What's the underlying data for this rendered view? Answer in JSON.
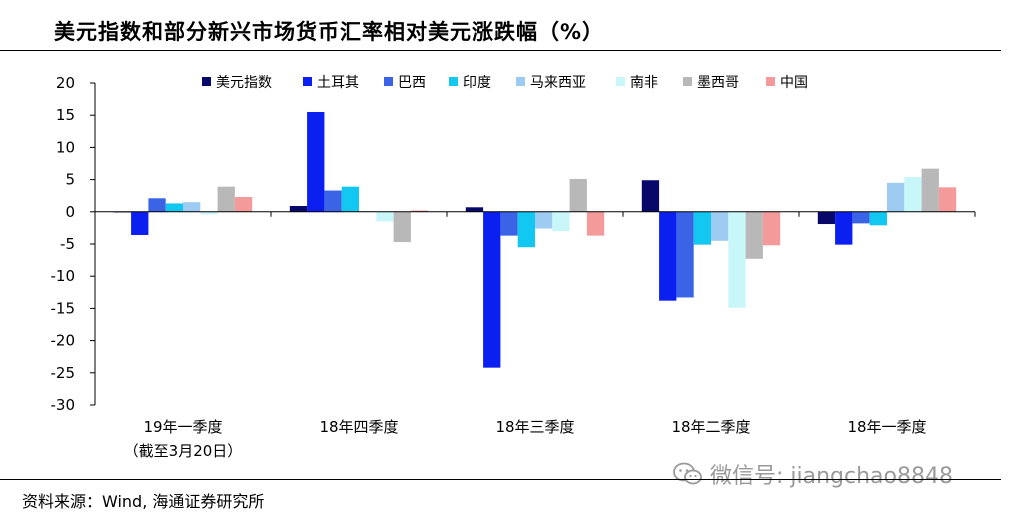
{
  "header": {
    "title": "美元指数和部分新兴市场货币汇率相对美元涨跌幅（%）"
  },
  "footer": {
    "source": "资料来源：Wind, 海通证券研究所",
    "watermark": "微信号: jiangchao8848"
  },
  "chart_data": {
    "type": "bar",
    "title": "美元指数和部分新兴市场货币汇率相对美元涨跌幅（%）",
    "categories": [
      "19年一季度",
      "18年四季度",
      "18年三季度",
      "18年二季度",
      "18年一季度"
    ],
    "category_sublabels": [
      "（截至3月20日）",
      "",
      "",
      "",
      ""
    ],
    "ylim": [
      -30,
      20
    ],
    "yticks": [
      20,
      15,
      10,
      5,
      0,
      -5,
      -10,
      -15,
      -20,
      -25,
      -30
    ],
    "legend_position": "top",
    "grid": false,
    "series": [
      {
        "name": "美元指数",
        "color": "#08086b",
        "values": [
          -0.1,
          0.9,
          0.7,
          4.9,
          -1.9
        ]
      },
      {
        "name": "土耳其",
        "color": "#0b1ff0",
        "values": [
          -3.6,
          15.5,
          -24.2,
          -13.8,
          -5.1
        ]
      },
      {
        "name": "巴西",
        "color": "#3a63e6",
        "values": [
          2.1,
          3.3,
          -3.7,
          -13.3,
          -1.8
        ]
      },
      {
        "name": "印度",
        "color": "#12c7f0",
        "values": [
          1.3,
          3.9,
          -5.5,
          -5.1,
          -2.1
        ]
      },
      {
        "name": "马来西亚",
        "color": "#9ecbf2",
        "values": [
          1.5,
          0.1,
          -2.6,
          -4.5,
          4.5
        ]
      },
      {
        "name": "南非",
        "color": "#c9f6f9",
        "values": [
          -0.4,
          -1.5,
          -3.0,
          -14.9,
          5.4
        ]
      },
      {
        "name": "墨西哥",
        "color": "#b8b8b8",
        "values": [
          3.9,
          -4.7,
          5.1,
          -7.3,
          6.7
        ]
      },
      {
        "name": "中国",
        "color": "#f59a9a",
        "values": [
          2.3,
          0.2,
          -3.7,
          -5.2,
          3.8
        ]
      }
    ]
  }
}
